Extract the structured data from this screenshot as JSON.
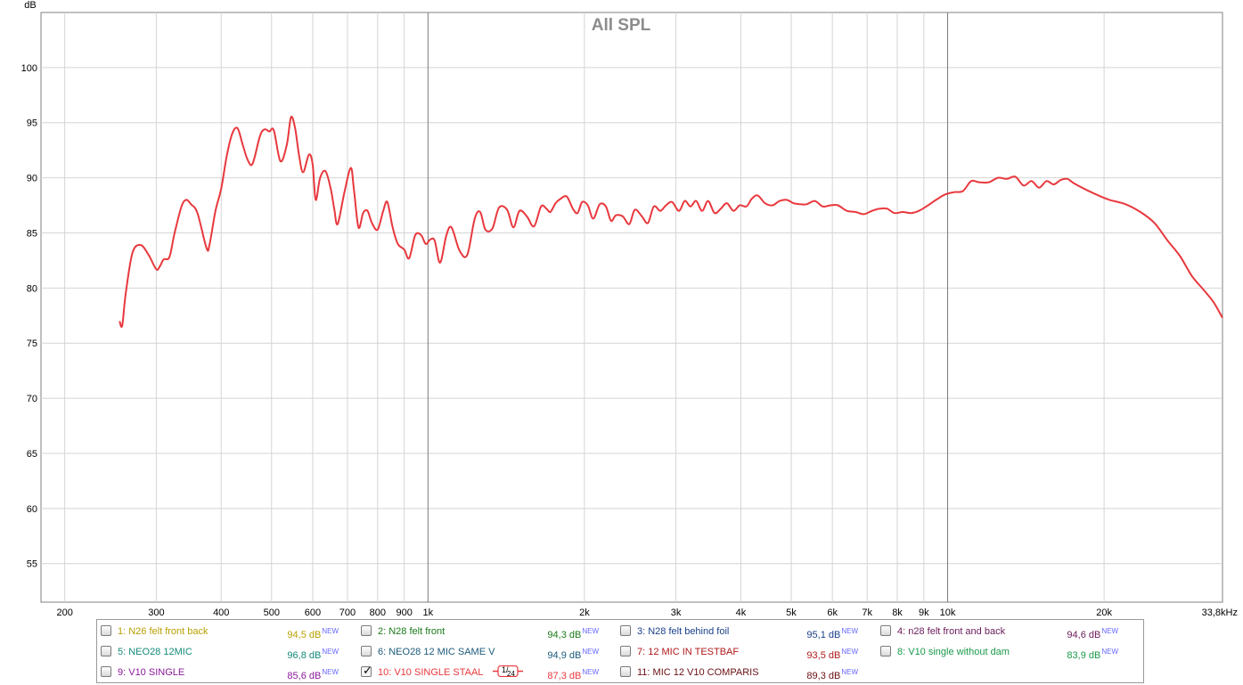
{
  "chart_data": {
    "type": "line",
    "title": "All SPL",
    "ylabel": "dB",
    "xlabel": "",
    "x_scale": "log",
    "xlim": [
      180,
      33800
    ],
    "ylim": [
      51.5,
      105
    ],
    "grid": true,
    "y_ticks": [
      55,
      60,
      65,
      70,
      75,
      80,
      85,
      90,
      95,
      100
    ],
    "x_ticks": [
      {
        "value": 200,
        "label": "200"
      },
      {
        "value": 300,
        "label": "300"
      },
      {
        "value": 400,
        "label": "400"
      },
      {
        "value": 500,
        "label": "500"
      },
      {
        "value": 600,
        "label": "600"
      },
      {
        "value": 700,
        "label": "700"
      },
      {
        "value": 800,
        "label": "800"
      },
      {
        "value": 900,
        "label": "900"
      },
      {
        "value": 1000,
        "label": "1k"
      },
      {
        "value": 2000,
        "label": "2k"
      },
      {
        "value": 3000,
        "label": "3k"
      },
      {
        "value": 4000,
        "label": "4k"
      },
      {
        "value": 5000,
        "label": "5k"
      },
      {
        "value": 6000,
        "label": "6k"
      },
      {
        "value": 7000,
        "label": "7k"
      },
      {
        "value": 8000,
        "label": "8k"
      },
      {
        "value": 9000,
        "label": "9k"
      },
      {
        "value": 10000,
        "label": "10k"
      },
      {
        "value": 20000,
        "label": "20k"
      },
      {
        "value": 33800,
        "label": "33,8kHz"
      }
    ],
    "major_gridlines_x": [
      1000,
      10000
    ],
    "series": [
      {
        "name": "10: V10 SINGLE STAAL",
        "color": "#e8383d",
        "x": [
          255,
          258,
          262,
          270,
          280,
          290,
          300,
          305,
          310,
          318,
          325,
          335,
          342,
          350,
          360,
          375,
          380,
          390,
          400,
          410,
          420,
          430,
          440,
          450,
          460,
          475,
          485,
          495,
          505,
          520,
          535,
          545,
          555,
          565,
          575,
          590,
          600,
          608,
          620,
          635,
          650,
          660,
          670,
          690,
          710,
          720,
          735,
          750,
          765,
          780,
          800,
          820,
          835,
          855,
          875,
          900,
          920,
          945,
          970,
          990,
          1010,
          1030,
          1055,
          1085,
          1110,
          1150,
          1190,
          1230,
          1260,
          1290,
          1330,
          1370,
          1420,
          1460,
          1500,
          1550,
          1600,
          1650,
          1690,
          1720,
          1760,
          1800,
          1850,
          1900,
          1940,
          1980,
          2030,
          2080,
          2140,
          2200,
          2250,
          2300,
          2370,
          2440,
          2500,
          2580,
          2650,
          2720,
          2800,
          2870,
          2950,
          3040,
          3120,
          3200,
          3280,
          3370,
          3460,
          3560,
          3660,
          3760,
          3870,
          3980,
          4100,
          4200,
          4310,
          4450,
          4600,
          4750,
          4900,
          5050,
          5200,
          5350,
          5550,
          5750,
          5950,
          6150,
          6400,
          6650,
          6900,
          7150,
          7400,
          7650,
          7900,
          8200,
          8500,
          8800,
          9100,
          9500,
          9900,
          10300,
          10700,
          11100,
          11500,
          12000,
          12500,
          13000,
          13500,
          14000,
          14500,
          15000,
          15500,
          16000,
          16500,
          17000,
          17500,
          18500,
          19500,
          20500,
          22000,
          23500,
          25000,
          26500,
          28000,
          29500,
          31000,
          32500,
          33800
        ],
        "y": [
          77.0,
          76.6,
          79.5,
          83.2,
          83.9,
          83.0,
          81.7,
          82.0,
          82.6,
          82.8,
          84.9,
          87.3,
          88.0,
          87.6,
          86.8,
          83.6,
          84.0,
          87.0,
          89.0,
          92.0,
          94.0,
          94.5,
          93.0,
          91.6,
          91.3,
          93.8,
          94.4,
          94.2,
          94.3,
          91.5,
          93.0,
          95.5,
          94.5,
          92.0,
          90.5,
          92.1,
          91.2,
          88.0,
          90.0,
          90.6,
          89.0,
          87.2,
          85.8,
          88.6,
          90.9,
          89.0,
          85.5,
          86.8,
          87.0,
          85.9,
          85.3,
          87.0,
          87.8,
          85.5,
          84.0,
          83.5,
          82.7,
          84.8,
          84.8,
          84.0,
          84.4,
          84.3,
          82.3,
          84.8,
          85.5,
          83.4,
          83.0,
          86.3,
          86.9,
          85.3,
          85.4,
          87.3,
          87.1,
          85.5,
          87.0,
          86.5,
          85.6,
          87.4,
          87.2,
          86.9,
          87.7,
          88.1,
          88.3,
          87.2,
          86.8,
          87.8,
          87.5,
          86.3,
          87.6,
          87.4,
          86.1,
          86.6,
          86.5,
          85.8,
          87.1,
          86.5,
          85.9,
          87.4,
          87.0,
          87.5,
          87.8,
          87.0,
          87.9,
          87.4,
          87.9,
          87.0,
          87.9,
          86.8,
          87.2,
          87.7,
          87.0,
          87.5,
          87.4,
          88.1,
          88.4,
          87.7,
          87.5,
          87.9,
          88.0,
          87.7,
          87.6,
          87.6,
          87.9,
          87.4,
          87.5,
          87.5,
          87.0,
          86.9,
          86.7,
          87.0,
          87.2,
          87.2,
          86.8,
          86.9,
          86.8,
          87.0,
          87.4,
          88.0,
          88.5,
          88.7,
          88.8,
          89.7,
          89.6,
          89.6,
          90.0,
          89.9,
          90.1,
          89.3,
          89.7,
          89.1,
          89.7,
          89.4,
          89.8,
          89.9,
          89.5,
          88.9,
          88.4,
          88.0,
          87.6,
          86.9,
          85.9,
          84.3,
          82.9,
          81.1,
          79.9,
          78.7,
          77.3
        ]
      }
    ]
  },
  "legend": [
    {
      "name": "1: N26 felt front back",
      "value": "94,5 dB",
      "badge": "NEW",
      "color": "#b8a000",
      "checked": false
    },
    {
      "name": "2: N28 felt front",
      "value": "94,3 dB",
      "badge": "NEW",
      "color": "#1a7a1a",
      "checked": false
    },
    {
      "name": "3: N28 felt behind foil",
      "value": "95,1 dB",
      "badge": "NEW",
      "color": "#1a3f8a",
      "checked": false
    },
    {
      "name": "4: n28 felt front and back",
      "value": "94,6 dB",
      "badge": "NEW",
      "color": "#6a1a5a",
      "checked": false
    },
    {
      "name": "5: NEO28 12MIC",
      "value": "96,8 dB",
      "badge": "NEW",
      "color": "#148a78",
      "checked": false
    },
    {
      "name": "6: NEO28 12 MIC SAME V",
      "value": "94,9 dB",
      "badge": "NEW",
      "color": "#1a5a7a",
      "checked": false
    },
    {
      "name": "7: 12 MIC IN TESTBAF",
      "value": "93,5 dB",
      "badge": "NEW",
      "color": "#b01a1a",
      "checked": false
    },
    {
      "name": "8: V10 single without dam",
      "value": "83,9 dB",
      "badge": "NEW",
      "color": "#1a9a4a",
      "checked": false
    },
    {
      "name": "9: V10 SINGLE",
      "value": "85,6 dB",
      "badge": "NEW",
      "color": "#8a1a9a",
      "checked": false
    },
    {
      "name": "10: V10 SINGLE STAAL",
      "value": "87,3 dB",
      "badge": "NEW",
      "color": "#e8383d",
      "checked": true,
      "smoothing": "1/24"
    },
    {
      "name": "11: MIC 12 V10 COMPARIS",
      "value": "89,3 dB",
      "badge": "NEW",
      "color": "#6a0f14",
      "checked": false
    }
  ]
}
